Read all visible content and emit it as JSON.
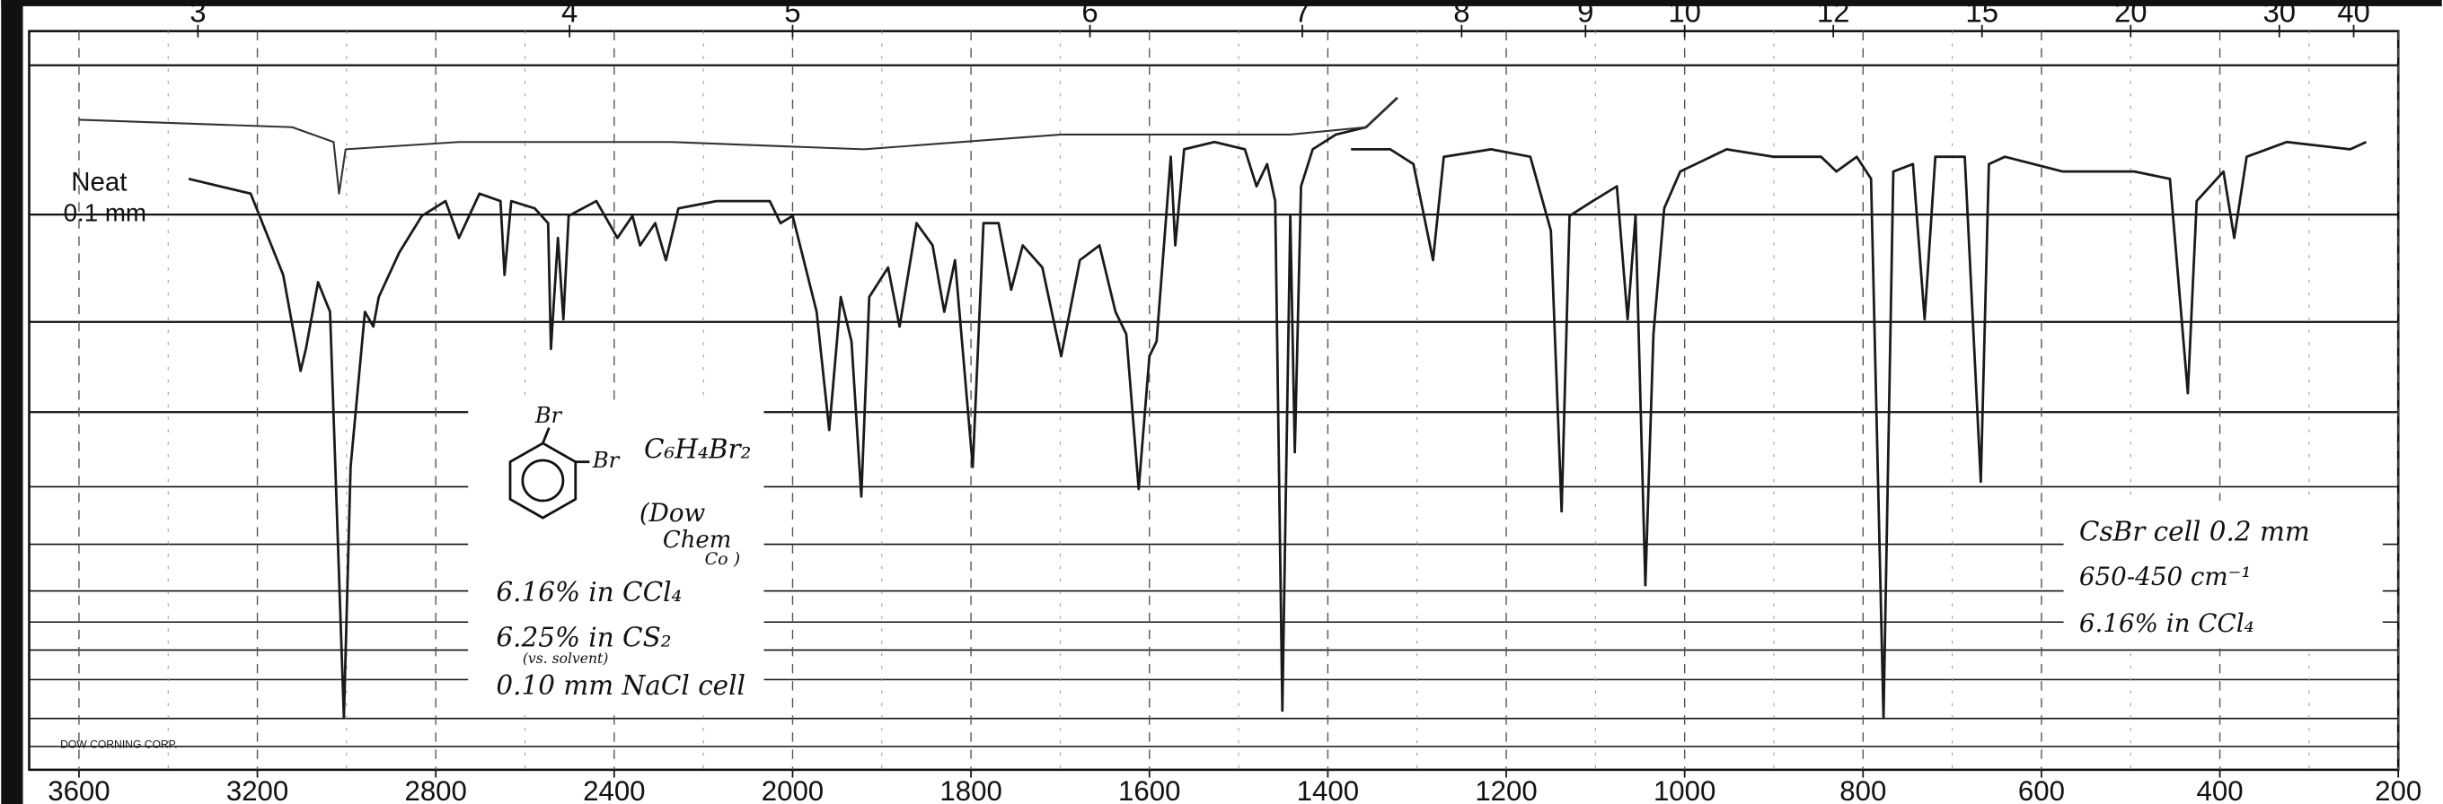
{
  "chart_data": {
    "type": "line",
    "xticks": [
      3600,
      3200,
      2800,
      2400,
      2000,
      1800,
      1600,
      1400,
      1200,
      1000,
      800,
      600,
      400,
      200
    ],
    "x2ticks": [
      3,
      4,
      5,
      6,
      7,
      8,
      9,
      10,
      12,
      15,
      20,
      30,
      40
    ],
    "ylim": [
      0,
      100
    ],
    "grid": true,
    "series": [
      {
        "color": "#1a1a1a",
        "x": [
          3354,
          3215,
          3142,
          3103,
          3091,
          3064,
          3037,
          3006,
          2991,
          2959,
          2940,
          2928,
          2882,
          2831,
          2778,
          2748,
          2702,
          2655,
          2646,
          2631,
          2578,
          2548,
          2542,
          2526,
          2514,
          2502,
          2440,
          2393,
          2359,
          2342,
          2308,
          2284,
          2256,
          2171,
          2051,
          2027,
          2000,
          1973,
          1959,
          1946,
          1934,
          1923,
          1914,
          1893,
          1880,
          1861,
          1843,
          1830,
          1818,
          1798,
          1786,
          1769,
          1755,
          1742,
          1720,
          1699,
          1678,
          1656,
          1638,
          1626,
          1612,
          1600,
          1592,
          1576,
          1571,
          1561,
          1527,
          1493,
          1480,
          1468,
          1459,
          1451,
          1442,
          1437,
          1430,
          1417,
          1391,
          1357,
          1322,
          1340,
          1374,
          1330,
          1304,
          1282,
          1270,
          1217,
          1173,
          1150,
          1138,
          1129,
          1103,
          1076,
          1064,
          1055,
          1044,
          1035,
          1023,
          1005,
          953,
          900,
          847,
          830,
          807,
          791,
          777,
          766,
          744,
          731,
          719,
          686,
          668,
          659,
          641,
          576,
          496,
          456,
          436,
          426,
          396,
          384,
          370,
          325,
          254,
          236
        ],
        "values": [
          80,
          78,
          67,
          54,
          57,
          66,
          62,
          7,
          41,
          62,
          60,
          64,
          70,
          75,
          77,
          72,
          78,
          77,
          67,
          77,
          76,
          74,
          57,
          72,
          61,
          75,
          77,
          72,
          75,
          71,
          74,
          69,
          76,
          77,
          77,
          74,
          75,
          62,
          46,
          64,
          58,
          37,
          64,
          68,
          60,
          74,
          71,
          62,
          69,
          41,
          74,
          74,
          65,
          71,
          68,
          56,
          69,
          71,
          62,
          59,
          38,
          56,
          58,
          83,
          71,
          84,
          85,
          84,
          79,
          82,
          77,
          8,
          75,
          43,
          79,
          84,
          86,
          87,
          91,
          null,
          84,
          84,
          82,
          69,
          83,
          84,
          83,
          73,
          35,
          75,
          77,
          79,
          61,
          75,
          25,
          59,
          76,
          81,
          84,
          83,
          83,
          81,
          83,
          80,
          7,
          81,
          82,
          61,
          83,
          83,
          39,
          82,
          83,
          81,
          81,
          80,
          51,
          77,
          81,
          72,
          83,
          85,
          84,
          85
        ]
      },
      {
        "color": "#333333",
        "x": [
          3600,
          3122,
          3029,
          3017,
          3002,
          2748,
          2273,
          1920,
          1699,
          1578,
          1442,
          1357,
          1322
        ],
        "values": [
          88,
          87,
          85,
          78,
          84,
          85,
          85,
          84,
          86,
          86,
          86,
          87,
          91
        ]
      }
    ],
    "annotations": [
      "Neat",
      "0.1 mm",
      "Br",
      "Br",
      "C₆H₄Br₂",
      "(Dow",
      "Chem",
      "Co )",
      "6.16% in CCl₄",
      "6.25% in CS₂",
      "(vs. solvent)",
      "0.10 mm NaCl cell",
      "CsBr cell 0.2 mm",
      "650-450 cm⁻¹",
      "6.16% in CCl₄",
      "DOW CORNING CORP."
    ]
  }
}
